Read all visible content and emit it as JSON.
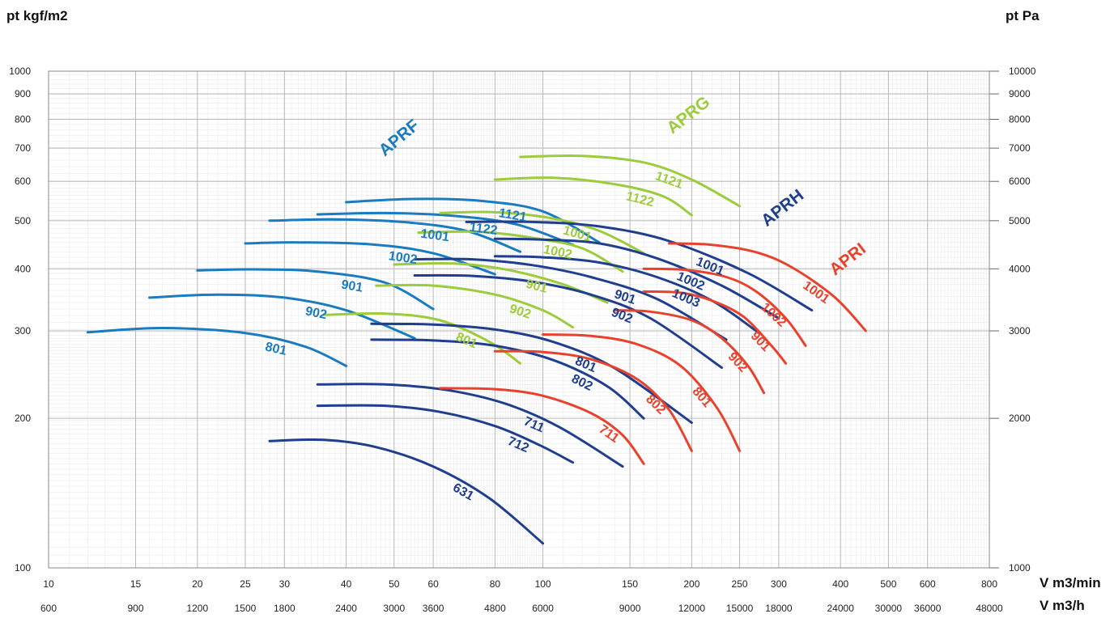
{
  "chart_data": {
    "type": "line",
    "title": "",
    "x_scale": "log",
    "y_scale": "log",
    "x_axis": {
      "label_top": "V m3/min",
      "label_bottom": "V m3/h",
      "range": [
        10,
        800
      ],
      "ticks": [
        10,
        15,
        20,
        25,
        30,
        40,
        50,
        60,
        80,
        100,
        150,
        200,
        250,
        300,
        400,
        500,
        600,
        800
      ],
      "ticks_m3h": [
        "600",
        "900",
        "1200",
        "1500",
        "1800",
        "2400",
        "3000",
        "3600",
        "4800",
        "6000",
        "9000",
        "12000",
        "15000",
        "18000",
        "24000",
        "30000",
        "36000",
        "48000"
      ]
    },
    "y_axis_left": {
      "label": "pt kgf/m2",
      "range": [
        100,
        1000
      ],
      "ticks": [
        100,
        200,
        300,
        400,
        500,
        600,
        700,
        800,
        900,
        1000
      ]
    },
    "y_axis_right": {
      "label": "pt Pa",
      "ticks": [
        "1000",
        "2000",
        "3000",
        "4000",
        "5000",
        "6000",
        "7000",
        "8000",
        "9000",
        "10000"
      ]
    },
    "grid": true,
    "families": [
      {
        "name": "APRF",
        "color": "#1b7bbf"
      },
      {
        "name": "APRG",
        "color": "#9ccb3b"
      },
      {
        "name": "APRH",
        "color": "#1f3f8e"
      },
      {
        "name": "APRI",
        "color": "#e8412c"
      }
    ],
    "series": [
      {
        "name": "801",
        "family": "APRF",
        "points": [
          [
            12,
            298
          ],
          [
            17,
            304
          ],
          [
            25,
            297
          ],
          [
            33,
            279
          ],
          [
            40,
            255
          ]
        ]
      },
      {
        "name": "902",
        "family": "APRF",
        "points": [
          [
            16,
            350
          ],
          [
            22,
            355
          ],
          [
            30,
            350
          ],
          [
            40,
            330
          ],
          [
            55,
            290
          ]
        ]
      },
      {
        "name": "901",
        "family": "APRF",
        "points": [
          [
            20,
            397
          ],
          [
            26,
            399
          ],
          [
            35,
            395
          ],
          [
            48,
            375
          ],
          [
            60,
            332
          ]
        ]
      },
      {
        "name": "1002",
        "family": "APRF",
        "points": [
          [
            25,
            450
          ],
          [
            32,
            452
          ],
          [
            45,
            448
          ],
          [
            60,
            430
          ],
          [
            80,
            390
          ]
        ]
      },
      {
        "name": "1001",
        "family": "APRF",
        "points": [
          [
            28,
            500
          ],
          [
            38,
            503
          ],
          [
            52,
            497
          ],
          [
            70,
            477
          ],
          [
            90,
            433
          ]
        ]
      },
      {
        "name": "1122",
        "family": "APRF",
        "points": [
          [
            35,
            515
          ],
          [
            48,
            518
          ],
          [
            65,
            512
          ],
          [
            88,
            492
          ],
          [
            115,
            447
          ]
        ]
      },
      {
        "name": "1121",
        "family": "APRF",
        "points": [
          [
            40,
            545
          ],
          [
            55,
            553
          ],
          [
            75,
            548
          ],
          [
            100,
            522
          ],
          [
            130,
            452
          ]
        ]
      },
      {
        "name": "801",
        "family": "APRG",
        "points": [
          [
            36,
            323
          ],
          [
            48,
            325
          ],
          [
            62,
            315
          ],
          [
            78,
            285
          ],
          [
            90,
            258
          ]
        ]
      },
      {
        "name": "902",
        "family": "APRG",
        "points": [
          [
            46,
            370
          ],
          [
            60,
            370
          ],
          [
            80,
            355
          ],
          [
            100,
            330
          ],
          [
            115,
            305
          ]
        ]
      },
      {
        "name": "901",
        "family": "APRG",
        "points": [
          [
            50,
            408
          ],
          [
            66,
            410
          ],
          [
            85,
            398
          ],
          [
            110,
            372
          ],
          [
            135,
            342
          ]
        ]
      },
      {
        "name": "1002",
        "family": "APRG",
        "points": [
          [
            56,
            473
          ],
          [
            74,
            475
          ],
          [
            95,
            462
          ],
          [
            120,
            440
          ],
          [
            145,
            395
          ]
        ]
      },
      {
        "name": "1001",
        "family": "APRG",
        "points": [
          [
            62,
            518
          ],
          [
            80,
            520
          ],
          [
            105,
            505
          ],
          [
            130,
            477
          ],
          [
            160,
            430
          ]
        ]
      },
      {
        "name": "1122",
        "family": "APRG",
        "points": [
          [
            80,
            605
          ],
          [
            105,
            610
          ],
          [
            140,
            592
          ],
          [
            175,
            560
          ],
          [
            200,
            513
          ]
        ]
      },
      {
        "name": "1121",
        "family": "APRG",
        "points": [
          [
            90,
            672
          ],
          [
            120,
            675
          ],
          [
            160,
            655
          ],
          [
            200,
            605
          ],
          [
            250,
            535
          ]
        ]
      },
      {
        "name": "631",
        "family": "APRH",
        "points": [
          [
            28,
            180
          ],
          [
            36,
            181
          ],
          [
            46,
            175
          ],
          [
            60,
            160
          ],
          [
            78,
            138
          ],
          [
            100,
            112
          ]
        ]
      },
      {
        "name": "712",
        "family": "APRH",
        "points": [
          [
            35,
            212
          ],
          [
            48,
            212
          ],
          [
            62,
            206
          ],
          [
            80,
            193
          ],
          [
            98,
            177
          ],
          [
            115,
            163
          ]
        ]
      },
      {
        "name": "711",
        "family": "APRH",
        "points": [
          [
            35,
            234
          ],
          [
            48,
            234
          ],
          [
            64,
            228
          ],
          [
            84,
            214
          ],
          [
            108,
            192
          ],
          [
            145,
            160
          ]
        ]
      },
      {
        "name": "802",
        "family": "APRH",
        "points": [
          [
            45,
            288
          ],
          [
            60,
            287
          ],
          [
            80,
            280
          ],
          [
            105,
            262
          ],
          [
            135,
            232
          ],
          [
            160,
            200
          ]
        ]
      },
      {
        "name": "801",
        "family": "APRH",
        "points": [
          [
            45,
            310
          ],
          [
            60,
            309
          ],
          [
            80,
            302
          ],
          [
            105,
            285
          ],
          [
            140,
            252
          ],
          [
            200,
            196
          ]
        ]
      },
      {
        "name": "902",
        "family": "APRH",
        "points": [
          [
            55,
            388
          ],
          [
            72,
            387
          ],
          [
            95,
            377
          ],
          [
            125,
            355
          ],
          [
            165,
            318
          ],
          [
            230,
            253
          ]
        ]
      },
      {
        "name": "901",
        "family": "APRH",
        "points": [
          [
            55,
            418
          ],
          [
            72,
            418
          ],
          [
            95,
            407
          ],
          [
            125,
            385
          ],
          [
            170,
            348
          ],
          [
            235,
            288
          ]
        ]
      },
      {
        "name": "1003",
        "family": "APRH",
        "points": [
          [
            80,
            424
          ],
          [
            100,
            422
          ],
          [
            130,
            412
          ],
          [
            170,
            385
          ],
          [
            220,
            345
          ],
          [
            270,
            300
          ]
        ]
      },
      {
        "name": "1002",
        "family": "APRH",
        "points": [
          [
            80,
            460
          ],
          [
            100,
            458
          ],
          [
            130,
            450
          ],
          [
            170,
            420
          ],
          [
            230,
            370
          ],
          [
            300,
            318
          ]
        ]
      },
      {
        "name": "1001",
        "family": "APRH",
        "points": [
          [
            70,
            497
          ],
          [
            95,
            497
          ],
          [
            130,
            487
          ],
          [
            180,
            455
          ],
          [
            260,
            392
          ],
          [
            350,
            330
          ]
        ]
      },
      {
        "name": "711",
        "family": "APRI",
        "points": [
          [
            62,
            230
          ],
          [
            80,
            229
          ],
          [
            100,
            222
          ],
          [
            125,
            205
          ],
          [
            145,
            185
          ],
          [
            160,
            162
          ]
        ]
      },
      {
        "name": "802",
        "family": "APRI",
        "points": [
          [
            80,
            273
          ],
          [
            100,
            272
          ],
          [
            125,
            263
          ],
          [
            155,
            240
          ],
          [
            180,
            208
          ],
          [
            200,
            172
          ]
        ]
      },
      {
        "name": "801",
        "family": "APRI",
        "points": [
          [
            100,
            295
          ],
          [
            125,
            293
          ],
          [
            155,
            282
          ],
          [
            190,
            255
          ],
          [
            225,
            210
          ],
          [
            250,
            172
          ]
        ]
      },
      {
        "name": "902",
        "family": "APRI",
        "points": [
          [
            140,
            330
          ],
          [
            165,
            328
          ],
          [
            200,
            315
          ],
          [
            230,
            290
          ],
          [
            260,
            255
          ],
          [
            280,
            225
          ]
        ]
      },
      {
        "name": "901",
        "family": "APRI",
        "points": [
          [
            160,
            360
          ],
          [
            190,
            358
          ],
          [
            220,
            345
          ],
          [
            255,
            320
          ],
          [
            290,
            280
          ],
          [
            310,
            258
          ]
        ]
      },
      {
        "name": "1002",
        "family": "APRI",
        "points": [
          [
            160,
            400
          ],
          [
            195,
            398
          ],
          [
            235,
            385
          ],
          [
            270,
            360
          ],
          [
            310,
            318
          ],
          [
            340,
            280
          ]
        ]
      },
      {
        "name": "1001",
        "family": "APRI",
        "points": [
          [
            180,
            450
          ],
          [
            220,
            447
          ],
          [
            270,
            432
          ],
          [
            320,
            402
          ],
          [
            390,
            350
          ],
          [
            450,
            300
          ]
        ]
      }
    ]
  }
}
